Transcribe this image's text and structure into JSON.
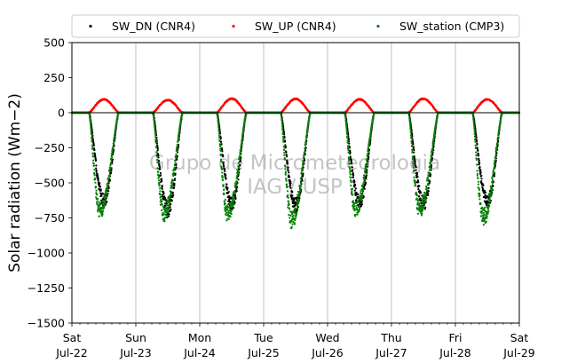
{
  "chart_data": {
    "type": "scatter",
    "title": "",
    "ylabel": "Solar radiation (Wm−2)",
    "xlabel": "",
    "ylim": [
      -1500,
      500
    ],
    "xlim": [
      0,
      7
    ],
    "yticks": [
      500,
      250,
      0,
      -250,
      -500,
      -750,
      -1000,
      -1250,
      -1500
    ],
    "ytick_labels": [
      "500",
      "250",
      "0",
      "−250",
      "−500",
      "−750",
      "−1000",
      "−1250",
      "−1500"
    ],
    "x_ticks": [
      {
        "day": "Sat",
        "date": "Jul-22"
      },
      {
        "day": "Sun",
        "date": "Jul-23"
      },
      {
        "day": "Mon",
        "date": "Jul-24"
      },
      {
        "day": "Tue",
        "date": "Jul-25"
      },
      {
        "day": "Wed",
        "date": "Jul-26"
      },
      {
        "day": "Thu",
        "date": "Jul-27"
      },
      {
        "day": "Fri",
        "date": "Jul-28"
      },
      {
        "day": "Sat",
        "date": "Jul-29"
      }
    ],
    "grid": "vertical",
    "legend_position": "top",
    "zero_line": true,
    "watermark": [
      "Grupo de Micrometeorologia",
      "IAG / USP"
    ],
    "series": [
      {
        "name": "SW_DN (CNR4)",
        "color": "#000000",
        "daily_peak": [
          -690,
          -760,
          -710,
          -720,
          -700,
          -710,
          -700
        ],
        "peak_hour": [
          12.0,
          12.0,
          12.0,
          12.0,
          12.0,
          12.0,
          12.0
        ]
      },
      {
        "name": "SW_UP (CNR4)",
        "color": "#ff0000",
        "daily_peak": [
          95,
          90,
          100,
          98,
          95,
          100,
          95
        ],
        "peak_hour": [
          12.0,
          12.0,
          12.0,
          12.0,
          12.0,
          12.0,
          12.0
        ]
      },
      {
        "name": "SW_station (CMP3)",
        "color": "#008000",
        "daily_peak": [
          -770,
          -790,
          -790,
          -840,
          -760,
          -760,
          -820
        ],
        "peak_hour": [
          10.5,
          10.5,
          10.5,
          10.5,
          10.5,
          10.5,
          10.5
        ]
      }
    ]
  }
}
